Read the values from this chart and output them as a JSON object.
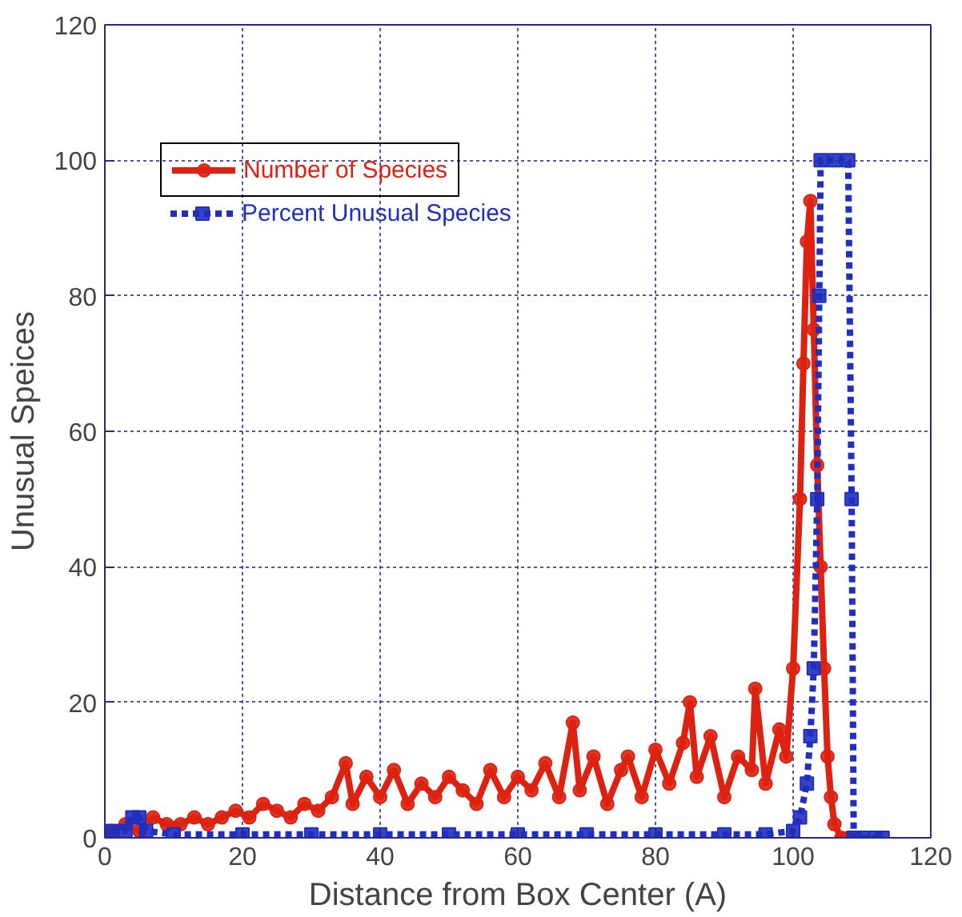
{
  "chart_data": {
    "type": "line",
    "xlabel": "Distance from Box Center (A)",
    "ylabel": "Unusual Speices",
    "xlim": [
      0,
      120
    ],
    "ylim": [
      0,
      120
    ],
    "xticks": [
      0,
      20,
      40,
      60,
      80,
      100,
      120
    ],
    "yticks": [
      0,
      20,
      40,
      60,
      80,
      100,
      120
    ],
    "grid": true,
    "legend": "top left",
    "series": [
      {
        "name": "Number of Species",
        "color": "#dd2211",
        "marker": "circle",
        "line_style": "solid",
        "x": [
          1,
          3,
          5,
          7,
          9,
          11,
          13,
          15,
          17,
          19,
          21,
          23,
          25,
          27,
          29,
          31,
          33,
          35,
          36,
          38,
          40,
          42,
          44,
          46,
          48,
          50,
          52,
          54,
          56,
          58,
          60,
          62,
          64,
          66,
          68,
          69,
          71,
          73,
          75,
          76,
          78,
          80,
          82,
          84,
          85,
          86,
          88,
          90,
          92,
          94,
          94.5,
          96,
          98,
          99,
          100,
          101,
          101.5,
          102,
          102.5,
          103,
          103.5,
          104,
          104.5,
          105,
          105.5,
          106,
          107,
          108
        ],
        "values": [
          1,
          2,
          1,
          3,
          2,
          2,
          3,
          2,
          3,
          4,
          3,
          5,
          4,
          3,
          5,
          4,
          6,
          11,
          5,
          9,
          6,
          10,
          5,
          8,
          6,
          9,
          7,
          5,
          10,
          6,
          9,
          7,
          11,
          6,
          17,
          7,
          12,
          5,
          10,
          12,
          6,
          13,
          8,
          14,
          20,
          9,
          15,
          6,
          12,
          10,
          22,
          8,
          16,
          12,
          25,
          50,
          70,
          88,
          94,
          75,
          55,
          40,
          25,
          12,
          6,
          2,
          0,
          0
        ]
      },
      {
        "name": "Percent Unusual Species",
        "color": "#1f2fbf",
        "marker": "square",
        "line_style": "dashed",
        "x": [
          1,
          3,
          4,
          5,
          6,
          10,
          20,
          30,
          40,
          50,
          60,
          70,
          80,
          90,
          96,
          100,
          101,
          102,
          102.5,
          103,
          103.5,
          103.8,
          104,
          106,
          108,
          108.5,
          108.8,
          110,
          112,
          113
        ],
        "values": [
          1,
          1,
          3,
          3,
          1,
          0.5,
          0.5,
          0.5,
          0.5,
          0.5,
          0.5,
          0.5,
          0.5,
          0.5,
          0.5,
          1,
          3,
          8,
          15,
          25,
          50,
          80,
          100,
          100,
          100,
          50,
          0,
          0,
          0,
          0
        ]
      }
    ]
  }
}
